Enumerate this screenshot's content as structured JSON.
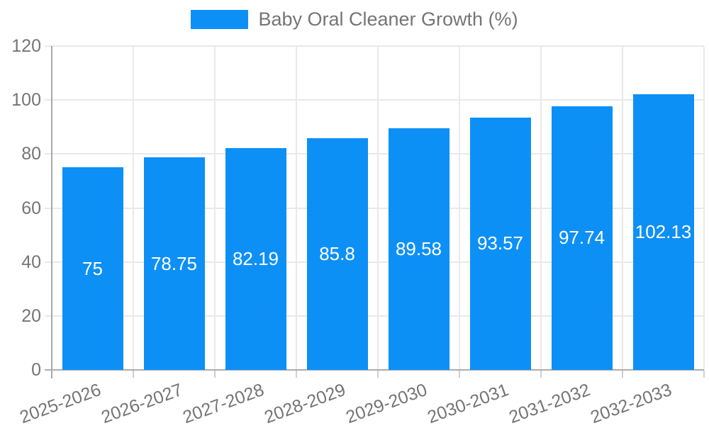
{
  "legend": {
    "label": "Baby Oral Cleaner Growth (%)",
    "swatch_color": "#0d90f6"
  },
  "chart_data": {
    "type": "bar",
    "title": "Baby Oral Cleaner Growth (%)",
    "categories": [
      "2025-2026",
      "2026-2027",
      "2027-2028",
      "2028-2029",
      "2029-2030",
      "2030-2031",
      "2031-2032",
      "2032-2033"
    ],
    "values": [
      75,
      78.75,
      82.19,
      85.8,
      89.58,
      93.57,
      97.74,
      102.13
    ],
    "value_labels": [
      "75",
      "78.75",
      "82.19",
      "85.8",
      "89.58",
      "93.57",
      "97.74",
      "102.13"
    ],
    "yticks": [
      "0",
      "20",
      "40",
      "60",
      "80",
      "100",
      "120"
    ],
    "ylim": [
      0,
      120
    ],
    "ytick_interval": 20,
    "xlabel": "",
    "ylabel": "",
    "grid": true,
    "legend_position": "top",
    "bar_color": "#0d90f6",
    "value_label_color": "#ffffff",
    "axis_text_color": "#757575"
  },
  "colors": {
    "bar": "#0d90f6",
    "axis_text": "#757575",
    "gridline": "#e9e9e9",
    "axis_line": "#a6a6a6",
    "background": "#ffffff"
  }
}
